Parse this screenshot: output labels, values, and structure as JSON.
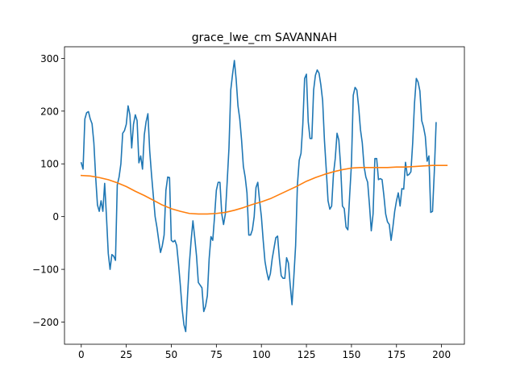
{
  "chart_data": {
    "type": "line",
    "title": "grace_lwe_cm SAVANNAH",
    "xlabel": "",
    "ylabel": "",
    "xlim": [
      -9.3,
      212.7
    ],
    "ylim": [
      -242,
      322
    ],
    "x_ticks": [
      0,
      25,
      50,
      75,
      100,
      125,
      150,
      175,
      200
    ],
    "y_ticks": [
      -200,
      -100,
      0,
      100,
      200,
      300
    ],
    "grid": false,
    "series": [
      {
        "color": "#1f77b4",
        "points": [
          [
            0,
            102
          ],
          [
            1,
            90
          ],
          [
            2,
            185
          ],
          [
            3,
            197
          ],
          [
            4,
            199
          ],
          [
            5,
            185
          ],
          [
            6,
            176
          ],
          [
            7,
            140
          ],
          [
            8,
            75
          ],
          [
            9,
            22
          ],
          [
            10,
            10
          ],
          [
            11,
            30
          ],
          [
            12,
            10
          ],
          [
            13,
            63
          ],
          [
            14,
            0
          ],
          [
            15,
            -70
          ],
          [
            16,
            -100
          ],
          [
            17,
            -72
          ],
          [
            18,
            -75
          ],
          [
            19,
            -83
          ],
          [
            20,
            60
          ],
          [
            21,
            75
          ],
          [
            22,
            100
          ],
          [
            23,
            158
          ],
          [
            24,
            163
          ],
          [
            25,
            175
          ],
          [
            26,
            210
          ],
          [
            27,
            193
          ],
          [
            28,
            130
          ],
          [
            29,
            175
          ],
          [
            30,
            193
          ],
          [
            31,
            182
          ],
          [
            32,
            102
          ],
          [
            33,
            115
          ],
          [
            34,
            90
          ],
          [
            35,
            155
          ],
          [
            36,
            180
          ],
          [
            37,
            195
          ],
          [
            38,
            125
          ],
          [
            39,
            80
          ],
          [
            40,
            40
          ],
          [
            41,
            0
          ],
          [
            42,
            -20
          ],
          [
            43,
            -45
          ],
          [
            44,
            -68
          ],
          [
            45,
            -55
          ],
          [
            46,
            -35
          ],
          [
            47,
            50
          ],
          [
            48,
            75
          ],
          [
            49,
            74
          ],
          [
            50,
            -45
          ],
          [
            51,
            -48
          ],
          [
            52,
            -45
          ],
          [
            53,
            -55
          ],
          [
            54,
            -90
          ],
          [
            55,
            -130
          ],
          [
            56,
            -175
          ],
          [
            57,
            -205
          ],
          [
            58,
            -218
          ],
          [
            59,
            -150
          ],
          [
            60,
            -90
          ],
          [
            61,
            -45
          ],
          [
            62,
            -8
          ],
          [
            63,
            -40
          ],
          [
            64,
            -75
          ],
          [
            65,
            -125
          ],
          [
            66,
            -130
          ],
          [
            67,
            -135
          ],
          [
            68,
            -180
          ],
          [
            69,
            -170
          ],
          [
            70,
            -150
          ],
          [
            71,
            -80
          ],
          [
            72,
            -38
          ],
          [
            73,
            -45
          ],
          [
            74,
            0
          ],
          [
            75,
            50
          ],
          [
            76,
            65
          ],
          [
            77,
            65
          ],
          [
            78,
            5
          ],
          [
            79,
            -15
          ],
          [
            80,
            5
          ],
          [
            81,
            65
          ],
          [
            82,
            130
          ],
          [
            83,
            240
          ],
          [
            84,
            270
          ],
          [
            85,
            296
          ],
          [
            86,
            260
          ],
          [
            87,
            210
          ],
          [
            88,
            185
          ],
          [
            89,
            145
          ],
          [
            90,
            95
          ],
          [
            91,
            75
          ],
          [
            92,
            45
          ],
          [
            93,
            -35
          ],
          [
            94,
            -35
          ],
          [
            95,
            -25
          ],
          [
            96,
            0
          ],
          [
            97,
            55
          ],
          [
            98,
            65
          ],
          [
            99,
            30
          ],
          [
            100,
            0
          ],
          [
            101,
            -45
          ],
          [
            102,
            -85
          ],
          [
            103,
            -105
          ],
          [
            104,
            -120
          ],
          [
            105,
            -108
          ],
          [
            106,
            -80
          ],
          [
            107,
            -60
          ],
          [
            108,
            -40
          ],
          [
            109,
            -37
          ],
          [
            110,
            -80
          ],
          [
            111,
            -112
          ],
          [
            112,
            -117
          ],
          [
            113,
            -117
          ],
          [
            114,
            -78
          ],
          [
            115,
            -88
          ],
          [
            116,
            -130
          ],
          [
            117,
            -167
          ],
          [
            118,
            -115
          ],
          [
            119,
            -55
          ],
          [
            120,
            60
          ],
          [
            121,
            107
          ],
          [
            122,
            120
          ],
          [
            123,
            175
          ],
          [
            124,
            262
          ],
          [
            125,
            270
          ],
          [
            126,
            180
          ],
          [
            127,
            148
          ],
          [
            128,
            148
          ],
          [
            129,
            240
          ],
          [
            130,
            268
          ],
          [
            131,
            278
          ],
          [
            132,
            272
          ],
          [
            133,
            250
          ],
          [
            134,
            220
          ],
          [
            135,
            145
          ],
          [
            136,
            90
          ],
          [
            137,
            30
          ],
          [
            138,
            14
          ],
          [
            139,
            20
          ],
          [
            140,
            80
          ],
          [
            141,
            110
          ],
          [
            142,
            158
          ],
          [
            143,
            145
          ],
          [
            144,
            95
          ],
          [
            145,
            20
          ],
          [
            146,
            15
          ],
          [
            147,
            -20
          ],
          [
            148,
            -25
          ],
          [
            149,
            40
          ],
          [
            150,
            100
          ],
          [
            151,
            230
          ],
          [
            152,
            245
          ],
          [
            153,
            240
          ],
          [
            154,
            208
          ],
          [
            155,
            165
          ],
          [
            156,
            140
          ],
          [
            157,
            95
          ],
          [
            158,
            75
          ],
          [
            159,
            65
          ],
          [
            160,
            22
          ],
          [
            161,
            -27
          ],
          [
            162,
            5
          ],
          [
            163,
            110
          ],
          [
            164,
            110
          ],
          [
            165,
            70
          ],
          [
            166,
            72
          ],
          [
            167,
            70
          ],
          [
            168,
            40
          ],
          [
            169,
            5
          ],
          [
            170,
            -10
          ],
          [
            171,
            -15
          ],
          [
            172,
            -45
          ],
          [
            173,
            -20
          ],
          [
            174,
            10
          ],
          [
            175,
            30
          ],
          [
            176,
            45
          ],
          [
            177,
            20
          ],
          [
            178,
            53
          ],
          [
            179,
            52
          ],
          [
            180,
            103
          ],
          [
            181,
            78
          ],
          [
            182,
            80
          ],
          [
            183,
            85
          ],
          [
            184,
            140
          ],
          [
            185,
            215
          ],
          [
            186,
            262
          ],
          [
            187,
            255
          ],
          [
            188,
            238
          ],
          [
            189,
            182
          ],
          [
            190,
            170
          ],
          [
            191,
            152
          ],
          [
            192,
            105
          ],
          [
            193,
            115
          ],
          [
            194,
            8
          ],
          [
            195,
            10
          ],
          [
            196,
            85
          ],
          [
            197,
            178
          ]
        ]
      },
      {
        "color": "#ff7f0e",
        "points": [
          [
            0,
            78
          ],
          [
            5,
            77
          ],
          [
            10,
            74
          ],
          [
            15,
            70
          ],
          [
            20,
            64
          ],
          [
            25,
            57
          ],
          [
            30,
            48
          ],
          [
            35,
            40
          ],
          [
            40,
            31
          ],
          [
            45,
            22
          ],
          [
            50,
            15
          ],
          [
            55,
            10
          ],
          [
            60,
            6
          ],
          [
            65,
            5
          ],
          [
            70,
            5
          ],
          [
            75,
            6
          ],
          [
            80,
            8
          ],
          [
            85,
            12
          ],
          [
            90,
            17
          ],
          [
            95,
            23
          ],
          [
            100,
            28
          ],
          [
            105,
            34
          ],
          [
            110,
            42
          ],
          [
            115,
            50
          ],
          [
            120,
            58
          ],
          [
            125,
            67
          ],
          [
            130,
            74
          ],
          [
            135,
            80
          ],
          [
            140,
            85
          ],
          [
            145,
            89
          ],
          [
            150,
            92
          ],
          [
            155,
            93
          ],
          [
            160,
            93
          ],
          [
            165,
            93
          ],
          [
            170,
            93
          ],
          [
            175,
            94
          ],
          [
            180,
            94
          ],
          [
            185,
            95
          ],
          [
            190,
            96
          ],
          [
            195,
            97
          ],
          [
            200,
            97
          ],
          [
            203,
            97
          ]
        ]
      }
    ]
  }
}
